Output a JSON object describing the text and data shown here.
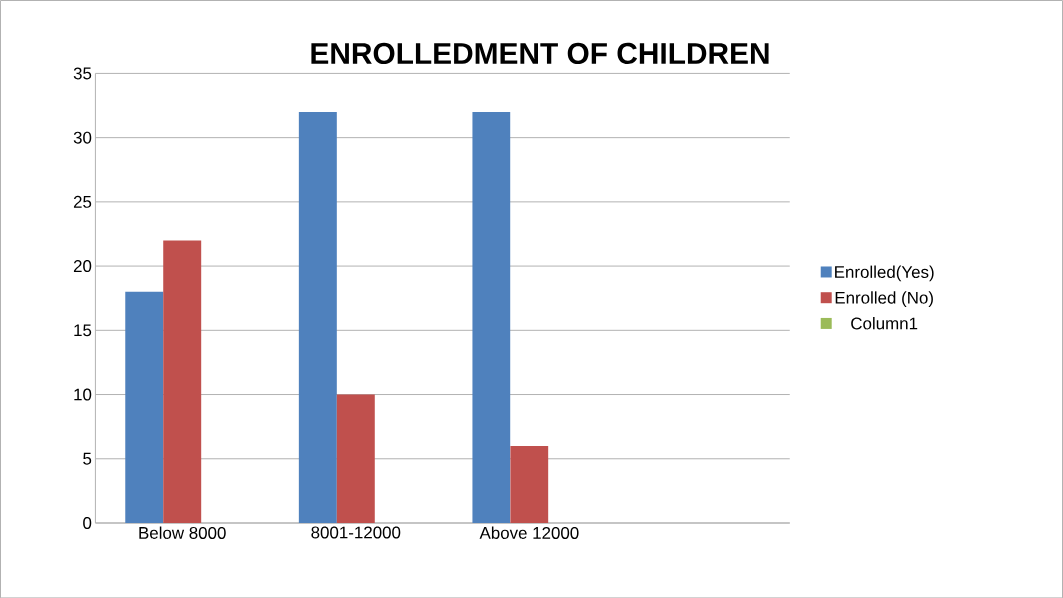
{
  "chart_data": {
    "type": "bar",
    "title": "ENROLLEDMENT OF CHILDREN",
    "categories": [
      "Below 8000",
      "8001-12000",
      "Above 12000",
      null
    ],
    "series": [
      {
        "name": "Enrolled(Yes)",
        "color": "#4f81bd",
        "values": [
          18,
          32,
          32,
          null
        ]
      },
      {
        "name": "Enrolled (No)",
        "color": "#c0504d",
        "values": [
          22,
          10,
          6,
          null
        ]
      },
      {
        "name": "Column1",
        "color": "#9bbb59",
        "values": [
          null,
          null,
          null,
          null
        ]
      }
    ],
    "ylim": [
      0,
      35
    ],
    "yticks": [
      0,
      5,
      10,
      15,
      20,
      25,
      30,
      35
    ],
    "grid": "y",
    "legend": "right"
  }
}
